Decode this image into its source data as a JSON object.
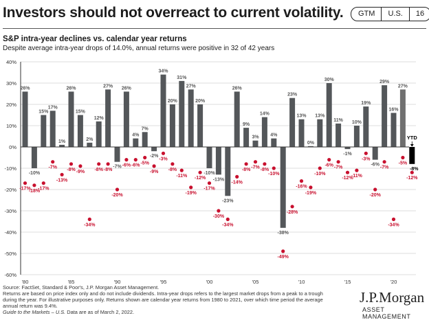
{
  "header": {
    "title": "Investors should not overreact to current volatility.",
    "badge": [
      "GTM",
      "U.S.",
      "16"
    ]
  },
  "chart_data": {
    "type": "bar",
    "title": "S&P intra-year declines vs. calendar year returns",
    "subtitle": "Despite average intra-year drops of 14.0%, annual returns were positive in 32 of 42 years",
    "xlabel": "",
    "ylabel": "",
    "ylim": [
      -60,
      40
    ],
    "yticks": [
      40,
      30,
      20,
      10,
      0,
      -10,
      -20,
      -30,
      -40,
      -50,
      -60
    ],
    "ytick_labels": [
      "40%",
      "30%",
      "20%",
      "10%",
      "0%",
      "-10%",
      "-20%",
      "-30%",
      "-40%",
      "-50%",
      "-60%"
    ],
    "xtick_labels": [
      {
        "year": "1980",
        "label": "'80"
      },
      {
        "year": "1985",
        "label": "'85"
      },
      {
        "year": "1990",
        "label": "'90"
      },
      {
        "year": "1995",
        "label": "'95"
      },
      {
        "year": "2000",
        "label": "'00"
      },
      {
        "year": "2005",
        "label": "'05"
      },
      {
        "year": "2010",
        "label": "'10"
      },
      {
        "year": "2015",
        "label": "'15"
      },
      {
        "year": "2020",
        "label": "'20"
      }
    ],
    "grid": true,
    "categories": [
      "1980",
      "1981",
      "1982",
      "1983",
      "1984",
      "1985",
      "1986",
      "1987",
      "1988",
      "1989",
      "1990",
      "1991",
      "1992",
      "1993",
      "1994",
      "1995",
      "1996",
      "1997",
      "1998",
      "1999",
      "2000",
      "2001",
      "2002",
      "2003",
      "2004",
      "2005",
      "2006",
      "2007",
      "2008",
      "2009",
      "2010",
      "2011",
      "2012",
      "2013",
      "2014",
      "2015",
      "2016",
      "2017",
      "2018",
      "2019",
      "2020",
      "2021",
      "YTD"
    ],
    "series": [
      {
        "name": "Calendar year return",
        "kind": "bar",
        "color": "#54575a",
        "ytd_color": "#000000",
        "last_color": "#707070",
        "values": [
          26,
          -10,
          15,
          17,
          1,
          26,
          15,
          2,
          12,
          27,
          -7,
          26,
          4,
          7,
          -2,
          34,
          20,
          31,
          27,
          20,
          -10,
          -13,
          -23,
          26,
          9,
          3,
          14,
          4,
          -38,
          23,
          13,
          0,
          13,
          30,
          11,
          -1,
          10,
          19,
          -6,
          29,
          16,
          27,
          -8
        ]
      },
      {
        "name": "Intra-year decline",
        "kind": "scatter",
        "color": "#c8102e",
        "values": [
          -17,
          -18,
          -17,
          -7,
          -13,
          -8,
          -9,
          -34,
          -8,
          -8,
          -20,
          -6,
          -6,
          -5,
          -9,
          -3,
          -8,
          -11,
          -19,
          -12,
          -17,
          -30,
          -34,
          -14,
          -8,
          -7,
          -8,
          -10,
          -49,
          -28,
          -16,
          -19,
          -10,
          -6,
          -7,
          -12,
          -11,
          -3,
          -20,
          -7,
          -34,
          -5,
          -12
        ]
      }
    ],
    "annotations": [
      {
        "text": "YTD",
        "target": "YTD"
      }
    ]
  },
  "footer": {
    "source": "Source: FactSet, Standard & Poor's, J.P. Morgan Asset Management.",
    "notes": "Returns are based on price index only and do not include dividends. Intra-year drops refers to the largest market drops from a peak to a trough during the year. For illustrative purposes only. Returns shown are calendar year returns from 1980 to 2021, over which time period the average annual return was 9.4%.",
    "guide": "Guide to the Markets – U.S.",
    "date": " Data are as of March 2, 2022.",
    "logo": "J.P.Morgan",
    "logo_sub": "ASSET MANAGEMENT"
  }
}
